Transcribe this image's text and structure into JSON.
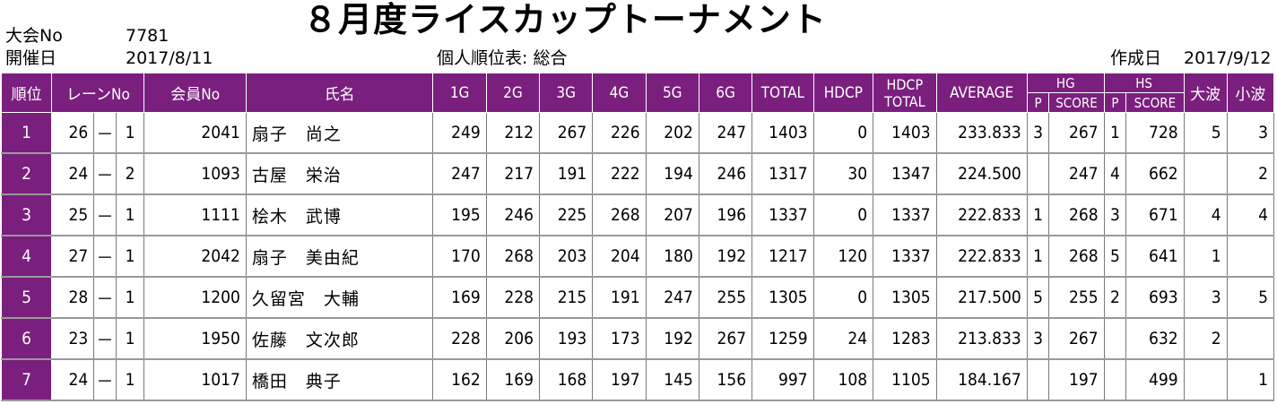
{
  "header": {
    "title": "８月度ライスカップトーナメント",
    "tournament_no_label": "大会No",
    "tournament_no": "7781",
    "date_label": "開催日",
    "date": "2017/8/11",
    "report_label": "個人順位表: 総合",
    "created_label": "作成日",
    "created_date": "2017/9/12"
  },
  "columns": {
    "rank": "順位",
    "lane": "レーンNo",
    "member": "会員No",
    "name": "氏名",
    "g1": "1G",
    "g2": "2G",
    "g3": "3G",
    "g4": "4G",
    "g5": "5G",
    "g6": "6G",
    "total": "TOTAL",
    "hdcp": "HDCP",
    "hdcp_total_1": "HDCP",
    "hdcp_total_2": "TOTAL",
    "average": "AVERAGE",
    "hg": "HG",
    "hs": "HS",
    "p": "P",
    "score": "SCORE",
    "big_wave": "大波",
    "small_wave": "小波"
  },
  "rows": [
    {
      "rank": "1",
      "lane_a": "26",
      "dash": "－",
      "lane_b": "1",
      "member": "2041",
      "name": "扇子　尚之",
      "g": [
        "249",
        "212",
        "267",
        "226",
        "202",
        "247"
      ],
      "total": "1403",
      "hdcp": "0",
      "hdcp_total": "1403",
      "average": "233.833",
      "hg_p": "3",
      "hg_score": "267",
      "hs_p": "1",
      "hs_score": "728",
      "big": "5",
      "small": "3"
    },
    {
      "rank": "2",
      "lane_a": "24",
      "dash": "－",
      "lane_b": "2",
      "member": "1093",
      "name": "古屋　栄治",
      "g": [
        "247",
        "217",
        "191",
        "222",
        "194",
        "246"
      ],
      "total": "1317",
      "hdcp": "30",
      "hdcp_total": "1347",
      "average": "224.500",
      "hg_p": "",
      "hg_score": "247",
      "hs_p": "4",
      "hs_score": "662",
      "big": "",
      "small": "2"
    },
    {
      "rank": "3",
      "lane_a": "25",
      "dash": "－",
      "lane_b": "1",
      "member": "1111",
      "name": "桧木　武博",
      "g": [
        "195",
        "246",
        "225",
        "268",
        "207",
        "196"
      ],
      "total": "1337",
      "hdcp": "0",
      "hdcp_total": "1337",
      "average": "222.833",
      "hg_p": "1",
      "hg_score": "268",
      "hs_p": "3",
      "hs_score": "671",
      "big": "4",
      "small": "4"
    },
    {
      "rank": "4",
      "lane_a": "27",
      "dash": "－",
      "lane_b": "1",
      "member": "2042",
      "name": "扇子　美由紀",
      "g": [
        "170",
        "268",
        "203",
        "204",
        "180",
        "192"
      ],
      "total": "1217",
      "hdcp": "120",
      "hdcp_total": "1337",
      "average": "222.833",
      "hg_p": "1",
      "hg_score": "268",
      "hs_p": "5",
      "hs_score": "641",
      "big": "1",
      "small": ""
    },
    {
      "rank": "5",
      "lane_a": "28",
      "dash": "－",
      "lane_b": "1",
      "member": "1200",
      "name": "久留宮　大輔",
      "g": [
        "169",
        "228",
        "215",
        "191",
        "247",
        "255"
      ],
      "total": "1305",
      "hdcp": "0",
      "hdcp_total": "1305",
      "average": "217.500",
      "hg_p": "5",
      "hg_score": "255",
      "hs_p": "2",
      "hs_score": "693",
      "big": "3",
      "small": "5"
    },
    {
      "rank": "6",
      "lane_a": "23",
      "dash": "－",
      "lane_b": "1",
      "member": "1950",
      "name": "佐藤　文次郎",
      "g": [
        "228",
        "206",
        "193",
        "173",
        "192",
        "267"
      ],
      "total": "1259",
      "hdcp": "24",
      "hdcp_total": "1283",
      "average": "213.833",
      "hg_p": "3",
      "hg_score": "267",
      "hs_p": "",
      "hs_score": "632",
      "big": "2",
      "small": ""
    },
    {
      "rank": "7",
      "lane_a": "24",
      "dash": "－",
      "lane_b": "1",
      "member": "1017",
      "name": "橋田　典子",
      "g": [
        "162",
        "169",
        "168",
        "197",
        "145",
        "156"
      ],
      "total": "997",
      "hdcp": "108",
      "hdcp_total": "1105",
      "average": "184.167",
      "hg_p": "",
      "hg_score": "197",
      "hs_p": "",
      "hs_score": "499",
      "big": "",
      "small": "1"
    }
  ]
}
